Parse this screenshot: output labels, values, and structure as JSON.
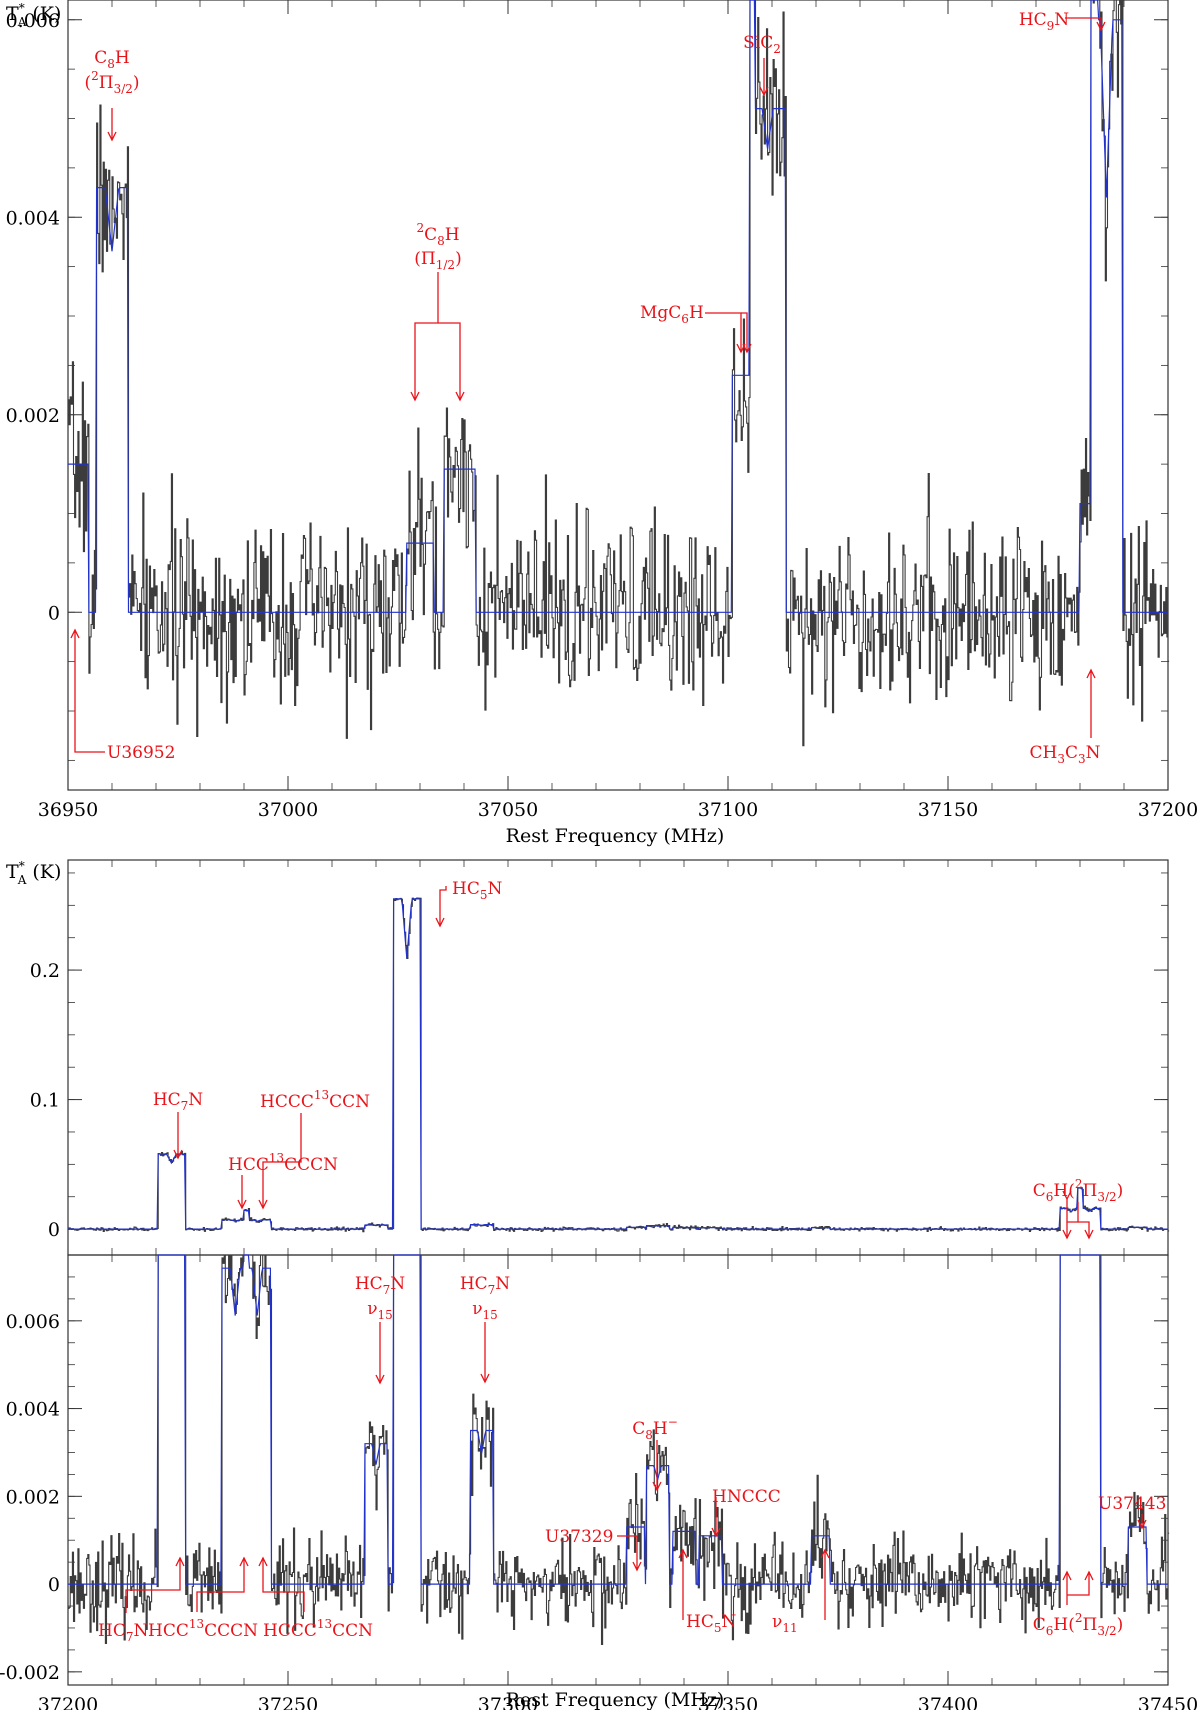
{
  "figure": {
    "panels": [
      {
        "id": "top",
        "ylabel_main": "T",
        "ylabel_sup": "*",
        "ylabel_sub": "A",
        "ylabel_unit": "(K)",
        "xlabel": "Rest Frequency (MHz)",
        "show_xlabel": true,
        "xlim": [
          36950,
          37200
        ],
        "ylim": [
          -0.0018,
          0.0062
        ],
        "x_ticks": [
          36950,
          37000,
          37050,
          37100,
          37150,
          37200
        ],
        "y_ticks": [
          0,
          0.002,
          0.004,
          0.006
        ],
        "y_tick_labels": [
          "0",
          "0.002",
          "0.004",
          "0.006"
        ],
        "noise_rms": 0.00045,
        "seed": 7
      },
      {
        "id": "middle",
        "ylabel_main": "T",
        "ylabel_sup": "*",
        "ylabel_sub": "A",
        "ylabel_unit": "(K)",
        "xlabel": "",
        "show_xlabel": false,
        "xlim": [
          37200,
          37450
        ],
        "ylim": [
          -0.02,
          0.285
        ],
        "x_ticks": [],
        "y_ticks": [
          0,
          0.1,
          0.2
        ],
        "y_tick_labels": [
          "0",
          "0.1",
          "0.2"
        ],
        "noise_rms": 0.0007,
        "seed": 11
      },
      {
        "id": "bottom",
        "ylabel_main": "",
        "ylabel_sup": "",
        "ylabel_sub": "",
        "ylabel_unit": "",
        "xlabel": "Rest Frequency (MHz)",
        "show_xlabel": true,
        "xlim": [
          37200,
          37450
        ],
        "ylim": [
          -0.0023,
          0.0075
        ],
        "x_ticks": [
          37200,
          37250,
          37300,
          37350,
          37400,
          37450
        ],
        "y_ticks": [
          -0.002,
          0,
          0.002,
          0.004,
          0.006
        ],
        "y_tick_labels": [
          "-0.002",
          "0",
          "0.002",
          "0.004",
          "0.006"
        ],
        "noise_rms": 0.0005,
        "seed": 23
      }
    ]
  },
  "chart_data": [
    {
      "type": "line",
      "panel": "top",
      "xlabel": "Rest Frequency (MHz)",
      "ylabel": "T*A (K)",
      "xlim": [
        36950,
        37200
      ],
      "ylim": [
        -0.0018,
        0.0062
      ],
      "colors": {
        "observed": "#3c3c3c",
        "model": "#2233cc",
        "annotation": "#e8141a"
      },
      "series": [
        {
          "name": "observed",
          "kind": "step-histogram"
        },
        {
          "name": "model",
          "kind": "line"
        }
      ],
      "lines": [
        {
          "center": 36952,
          "width": 2.5,
          "peak": 0.0015,
          "doublet_sep": 0,
          "dip": 0
        },
        {
          "center": 36960,
          "width": 3.5,
          "peak": 0.0043,
          "doublet_sep": 2.2,
          "dip": 0.15
        },
        {
          "center": 37030,
          "width": 3.0,
          "peak": 0.0007,
          "doublet_sep": 0,
          "dip": 0
        },
        {
          "center": 37039,
          "width": 3.5,
          "peak": 0.00145,
          "doublet_sep": 0,
          "dip": 0
        },
        {
          "center": 37103.5,
          "width": 2.5,
          "peak": 0.0024,
          "doublet_sep": 0,
          "dip": 0
        },
        {
          "center": 37109,
          "width": 4.0,
          "peak": 0.0051,
          "doublet_sep": 1.8,
          "dip": 0.08
        },
        {
          "center": 37182,
          "width": 2.0,
          "peak": 0.0011,
          "doublet_sep": 0,
          "dip": 0
        },
        {
          "center": 37186,
          "width": 3.5,
          "peak": 0.006,
          "doublet_sep": 2.0,
          "dip": 0.3
        }
      ],
      "annotations": [
        {
          "label": "C8H (2Π3/2)",
          "x": 36960
        },
        {
          "label": "C8H (2Π1/2)",
          "x": 37034
        },
        {
          "label": "MgC6H",
          "x": 37104
        },
        {
          "label": "SiC2",
          "x": 37109
        },
        {
          "label": "HC9N",
          "x": 37186
        },
        {
          "label": "U36952",
          "x": 36952
        },
        {
          "label": "CH3C3N",
          "x": 37182
        }
      ]
    },
    {
      "type": "line",
      "panel": "middle",
      "ylabel": "T*A (K)",
      "xlim": [
        37200,
        37450
      ],
      "ylim": [
        -0.02,
        0.285
      ],
      "series": [
        {
          "name": "observed",
          "kind": "step-histogram"
        },
        {
          "name": "model",
          "kind": "line"
        }
      ],
      "lines": [
        {
          "center": 37223.5,
          "width": 3.0,
          "peak": 0.058,
          "doublet_sep": 1.6,
          "dip": 0.12
        },
        {
          "center": 37238,
          "width": 3.0,
          "peak": 0.0072,
          "doublet_sep": 1.6,
          "dip": 0.15
        },
        {
          "center": 37243,
          "width": 3.0,
          "peak": 0.0072,
          "doublet_sep": 1.6,
          "dip": 0.15
        },
        {
          "center": 37277,
          "width": 3.0,
          "peak": 0.255,
          "doublet_sep": 1.6,
          "dip": 0.18
        },
        {
          "center": 37270,
          "width": 2.5,
          "peak": 0.0032,
          "doublet_sep": 1.3,
          "dip": 0.15
        },
        {
          "center": 37294,
          "width": 2.5,
          "peak": 0.0035,
          "doublet_sep": 1.3,
          "dip": 0.15
        },
        {
          "center": 37329,
          "width": 2.0,
          "peak": 0.0013,
          "doublet_sep": 0,
          "dip": 0
        },
        {
          "center": 37334,
          "width": 2.5,
          "peak": 0.0027,
          "doublet_sep": 1.2,
          "dip": 0.12
        },
        {
          "center": 37340,
          "width": 2.5,
          "peak": 0.0012,
          "doublet_sep": 0,
          "dip": 0
        },
        {
          "center": 37346,
          "width": 2.5,
          "peak": 0.0011,
          "doublet_sep": 0,
          "dip": 0
        },
        {
          "center": 37371,
          "width": 2.0,
          "peak": 0.0011,
          "doublet_sep": 0,
          "dip": 0
        },
        {
          "center": 37428,
          "width": 2.5,
          "peak": 0.016,
          "doublet_sep": 1.4,
          "dip": 0.15
        },
        {
          "center": 37432,
          "width": 2.5,
          "peak": 0.016,
          "doublet_sep": 1.4,
          "dip": 0.15
        },
        {
          "center": 37443,
          "width": 2.0,
          "peak": 0.0013,
          "doublet_sep": 0,
          "dip": 0
        }
      ],
      "annotations": [
        {
          "label": "HC7N",
          "x": 37223.5
        },
        {
          "label": "HCC13CCCN",
          "x": 37238
        },
        {
          "label": "HCCC13CCN",
          "x": 37243
        },
        {
          "label": "HC5N",
          "x": 37277
        },
        {
          "label": "C6H(2Π3/2)",
          "x": 37430
        }
      ]
    },
    {
      "type": "line",
      "panel": "bottom",
      "xlabel": "Rest Frequency (MHz)",
      "xlim": [
        37200,
        37450
      ],
      "ylim": [
        -0.0023,
        0.0075
      ],
      "series": [
        {
          "name": "observed",
          "kind": "step-histogram"
        },
        {
          "name": "model",
          "kind": "line"
        }
      ],
      "annotations": [
        {
          "label": "HC7N ν15",
          "x": 37270
        },
        {
          "label": "HC7N ν15",
          "x": 37294
        },
        {
          "label": "C8H−",
          "x": 37334
        },
        {
          "label": "U37329",
          "x": 37329
        },
        {
          "label": "HNCCC",
          "x": 37346
        },
        {
          "label": "U37443",
          "x": 37443
        },
        {
          "label": "HC7N",
          "x": 37223.5
        },
        {
          "label": "HCC13CCCN",
          "x": 37238
        },
        {
          "label": "HCCC13CCN",
          "x": 37243
        },
        {
          "label": "HC5N ν11",
          "x": 37355
        },
        {
          "label": "C6H(2Π3/2)",
          "x": 37430
        }
      ]
    }
  ],
  "annotation_text": {
    "c8h_32": {
      "main": "C",
      "sub": "8",
      "tail": "H",
      "paren": "(",
      "sup": "2",
      "pi": "Π",
      "pisub": "3/2",
      "close": ")"
    },
    "c8h_12": {
      "main": "C",
      "sub": "8",
      "tail": "H",
      "paren": "(",
      "sup": "2",
      "pi": "Π",
      "pisub": "1/2",
      "close": ")"
    },
    "mgc6h": {
      "main": "MgC",
      "sub": "6",
      "tail": "H"
    },
    "sic2": {
      "main": "SiC",
      "sub": "2"
    },
    "hc9n": {
      "main": "HC",
      "sub": "9",
      "tail": "N"
    },
    "u36952": "U36952",
    "ch3c3n": {
      "a": "CH",
      "s1": "3",
      "b": "C",
      "s2": "3",
      "c": "N"
    },
    "hc7n": {
      "main": "HC",
      "sub": "7",
      "tail": "N"
    },
    "hcc13": {
      "a": "HCC",
      "sup": "13",
      "b": "CCCN"
    },
    "hccc13": {
      "a": "HCCC",
      "sup": "13",
      "b": "CCN"
    },
    "hc5n": {
      "main": "HC",
      "sub": "5",
      "tail": "N"
    },
    "c6h": {
      "a": "C",
      "s1": "6",
      "b": "H(",
      "sup": "2",
      "pi": "Π",
      "pisub": "3/2",
      "close": ")"
    },
    "nu15": {
      "nu": "ν",
      "sub": "15"
    },
    "c8hm": {
      "a": "C",
      "s1": "8",
      "b": "H",
      "sup": "−"
    },
    "u37329": "U37329",
    "hnccc": "HNCCC",
    "u37443": "U37443",
    "nu11": {
      "nu": "ν",
      "sub": "11"
    }
  }
}
